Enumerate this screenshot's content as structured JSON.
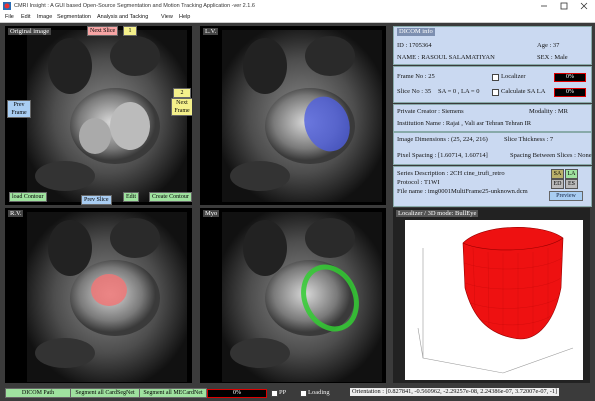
{
  "window_title": "CMRI Insight : A GUI based Open-Source Segmentation and Motion Tracking Application -ver 2.1.6",
  "menu": [
    "File",
    "Edit",
    "Image",
    "Segmentation",
    "Analysis and Tacking",
    "View",
    "Help"
  ],
  "views": {
    "original": "Original image",
    "lv": "L.V.",
    "rv": "R.V.",
    "myo": "Myo",
    "localizer": "Localizer / 3D mode: BullEye"
  },
  "controls": {
    "next_slice": "Next Slice",
    "slice_index": "1",
    "prev_frame": "Prev Frame",
    "frame_index": "2",
    "next_frame": "Next Frame",
    "load_contour": "load Contour",
    "prev_slice": "Prev Slice",
    "edit": "Edit",
    "create_contour": "Create Contour"
  },
  "info": {
    "heading": "DICOM info",
    "id": "ID : 1705364",
    "age": "Age : 37",
    "name": "NAME : RASOUL SALAMATIYAN",
    "sex": "SEX : Male",
    "frame_no": "Frame No : 25",
    "localizer": "Localizer",
    "localizer_progress": "0%",
    "slice_no": "Slice No : 35",
    "sa_la": "SA = 0 , LA = 0",
    "calc": "Calculate SA LA",
    "calc_progress": "0%",
    "creator": "Private Creator : Siemens",
    "modality": "Modality : MR",
    "institution": "Institution Name : Rajai , Vali asr   Tehran   Tehran   IR",
    "dimensions": "Image Dimensions : (25, 224, 216)",
    "thickness": "Slice Thickness : 7",
    "pixel_spacing": "Pixel Spacing : [1.60714, 1.60714]",
    "spacing": "Spacing Between Slices : None",
    "series": "Series Description : 2CH cine_trufi_retro",
    "protocol": "Protocol : T1WI",
    "file": "File name : img0001MultiFrame25-unknown.dcm",
    "sa": "SA",
    "la": "LA",
    "ed": "ED",
    "es": "ES",
    "preview": "Preview"
  },
  "bottom": {
    "dicom_path": "DICOM Path",
    "seg_card": "Segment all CardSegNet",
    "seg_me": "Segment all MECardNet",
    "progress": "0%",
    "pp": "PP",
    "loading": "Loading",
    "orientation": "Orientation : [0.827841, -0.560962, -2.29257e-08, 2.24386e-07, 3.72007e-07, -1]"
  }
}
